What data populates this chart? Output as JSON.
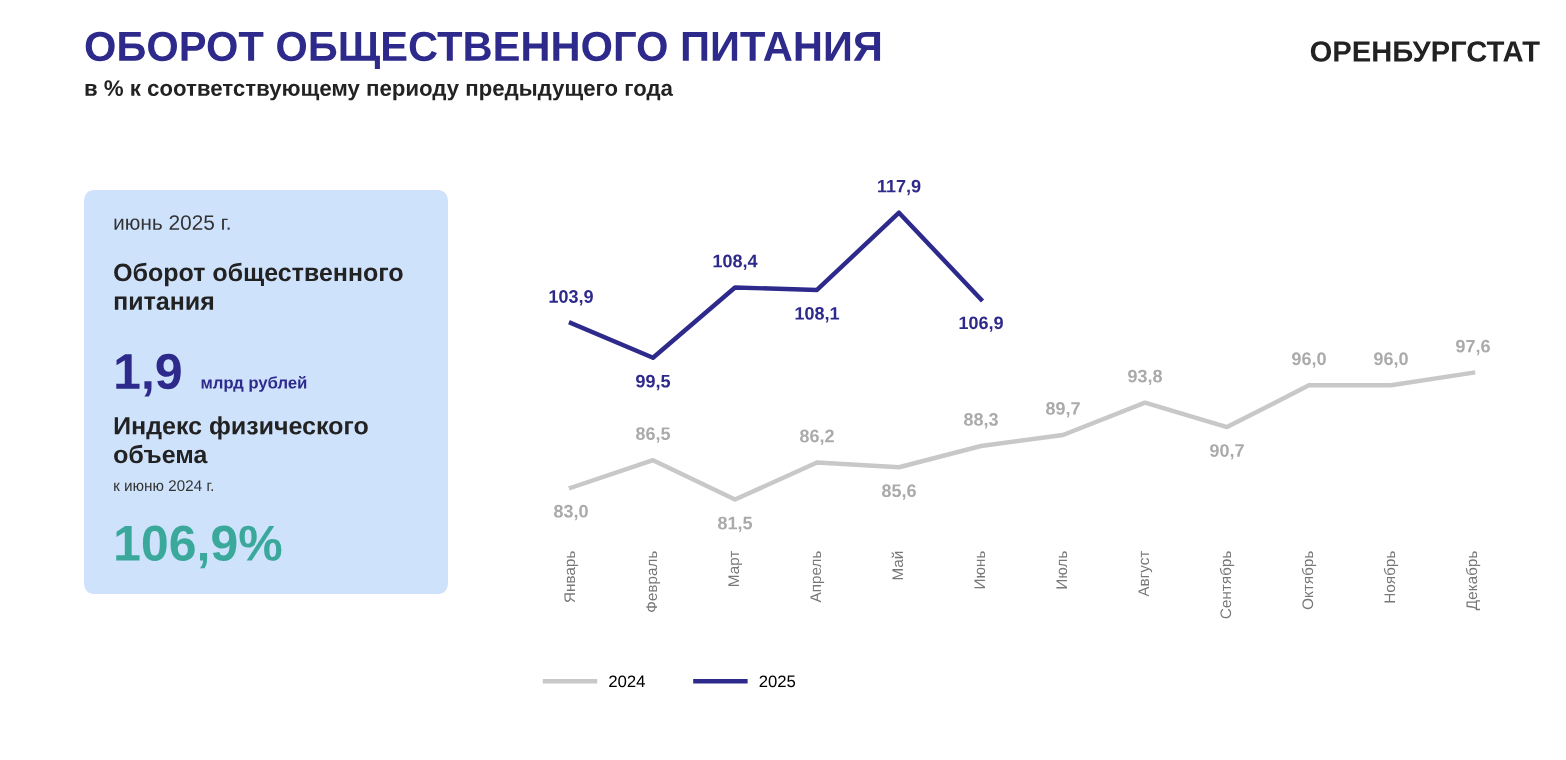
{
  "chart_data": [
    {
      "type": "other",
      "annotations": [
        "июнь 2025 г.",
        "Оборот общественного\nпитания",
        "1,9",
        "млрд рублей",
        "Индекс физического\nобъема",
        "к июню 2024 г.",
        "106,9%"
      ]
    },
    {
      "type": "line",
      "title": "ОБОРОТ ОБЩЕСТВЕННОГО ПИТАНИЯ",
      "subtitle": "в % к соответствующему периоду предыдущего года",
      "annotations": [
        "ОРЕНБУРГСТАТ"
      ],
      "categories": [
        "Январь",
        "Февраль",
        "Март",
        "Апрель",
        "Май",
        "Июнь",
        "Июль",
        "Август",
        "Сентябрь",
        "Октябрь",
        "Ноябрь",
        "Декабрь"
      ],
      "series": [
        {
          "name": "2024",
          "color": "#c8c8c8",
          "values": [
            83.0,
            86.5,
            81.5,
            86.2,
            85.6,
            88.3,
            89.7,
            93.8,
            90.7,
            96.0,
            96.0,
            97.6
          ],
          "value_labels": [
            "83,0",
            "86,5",
            "81,5",
            "86,2",
            "85,6",
            "88,3",
            "89,7",
            "93,8",
            "90,7",
            "96,0",
            "96,0",
            "97,6"
          ]
        },
        {
          "name": "2025",
          "color": "#2e2a8c",
          "values": [
            103.9,
            99.5,
            108.4,
            108.1,
            117.9,
            106.9,
            null,
            null,
            null,
            null,
            null,
            null
          ],
          "value_labels": [
            "103,9",
            "99,5",
            "108,4",
            "108,1",
            "117,9",
            "106,9",
            null,
            null,
            null,
            null,
            null,
            null
          ]
        }
      ],
      "legend": "bottom",
      "grid": false,
      "marker": "none",
      "line_style": "solid"
    }
  ]
}
